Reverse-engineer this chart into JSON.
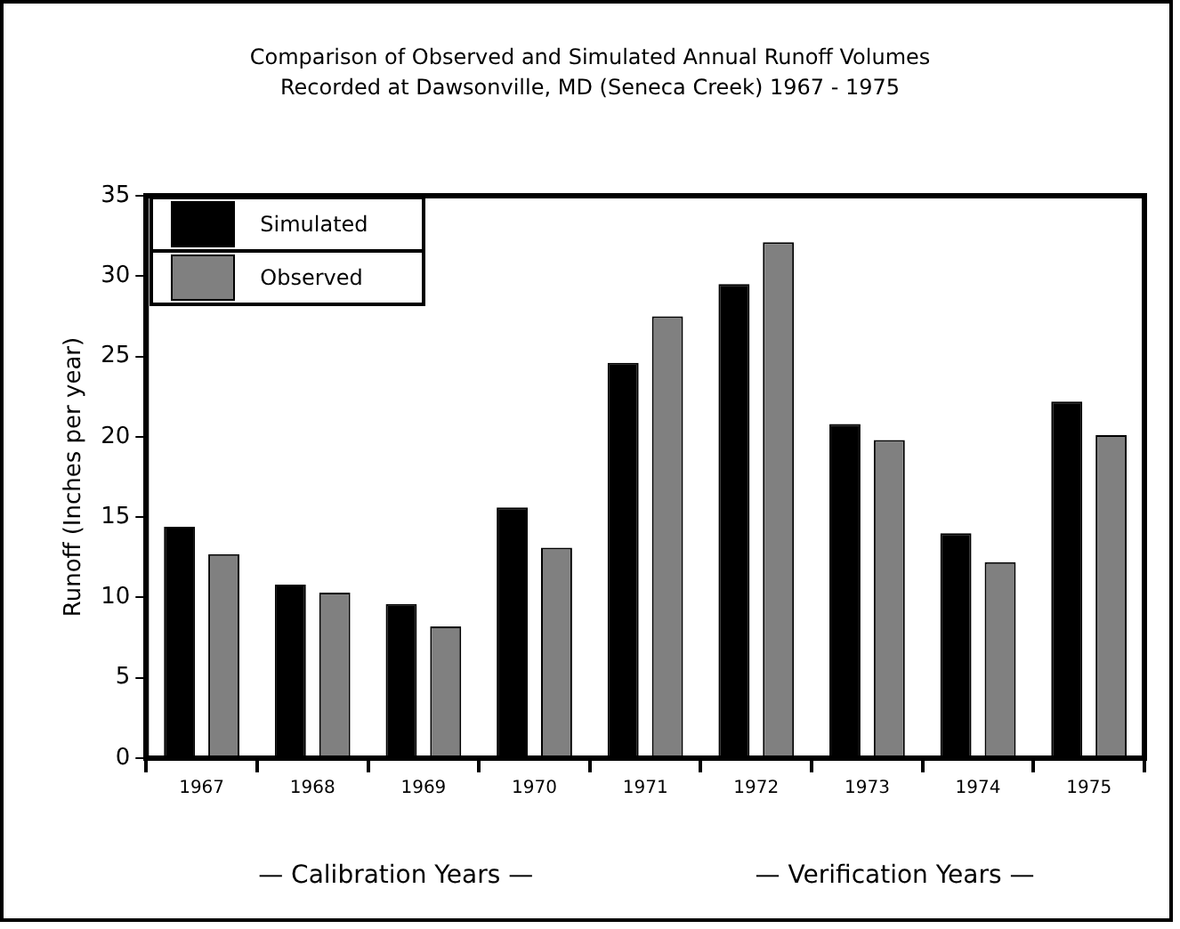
{
  "chart_data": {
    "type": "bar",
    "title": [
      "Comparison of Observed and Simulated Annual Runoff Volumes",
      "Recorded at Dawsonville, MD (Seneca Creek) 1967 - 1975"
    ],
    "ylabel": "Runoff (Inches per year)",
    "categories": [
      "1967",
      "1968",
      "1969",
      "1970",
      "1971",
      "1972",
      "1973",
      "1974",
      "1975"
    ],
    "series": [
      {
        "name": "Simulated",
        "color": "#000000",
        "values": [
          14.4,
          10.8,
          9.6,
          15.6,
          24.6,
          29.5,
          20.8,
          14.0,
          22.2
        ]
      },
      {
        "name": "Observed",
        "color": "#808080",
        "values": [
          12.7,
          10.3,
          8.2,
          13.1,
          27.5,
          32.1,
          19.8,
          12.2,
          20.1
        ]
      }
    ],
    "ylim": [
      0,
      35
    ],
    "yticks": [
      0,
      5,
      10,
      15,
      20,
      25,
      30,
      35
    ],
    "grid": false,
    "legend": "top left",
    "annotations": [
      "— Calibration Years —",
      "— Verification Years —"
    ]
  }
}
